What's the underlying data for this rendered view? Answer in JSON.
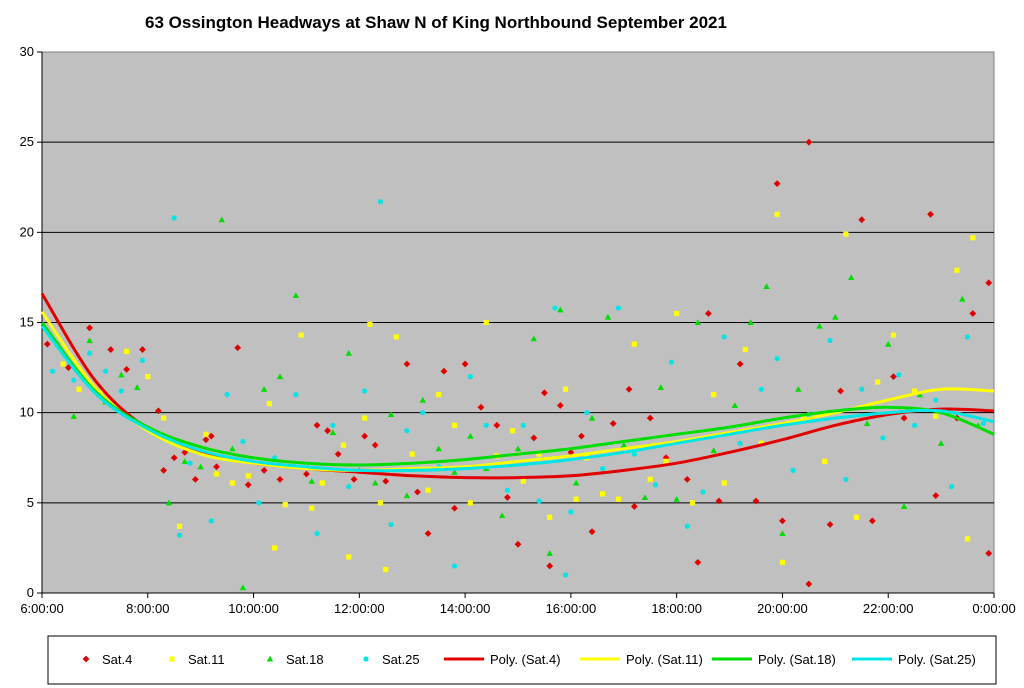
{
  "chart_data": {
    "type": "scatter",
    "title": "63 Ossington Headways at Shaw N of King Northbound September 2021",
    "xlabel": "",
    "ylabel": "",
    "xlim": [
      6,
      24
    ],
    "ylim": [
      0,
      30
    ],
    "x_ticks": [
      6,
      8,
      10,
      12,
      14,
      16,
      18,
      20,
      22,
      24
    ],
    "x_tick_labels": [
      "6:00:00",
      "8:00:00",
      "10:00:00",
      "12:00:00",
      "14:00:00",
      "16:00:00",
      "18:00:00",
      "20:00:00",
      "22:00:00",
      "0:00:00"
    ],
    "y_ticks": [
      0,
      5,
      10,
      15,
      20,
      25,
      30
    ],
    "y_tick_labels": [
      "0",
      "5",
      "10",
      "15",
      "20",
      "25",
      "30"
    ],
    "grid": "horizontal",
    "plot_background": "#c0c0c0",
    "legend_position": "bottom",
    "series": [
      {
        "name": "Sat.4",
        "marker": "diamond",
        "color": "#e00000",
        "points": [
          [
            6.1,
            13.8
          ],
          [
            6.5,
            12.5
          ],
          [
            6.9,
            14.7
          ],
          [
            7.3,
            13.5
          ],
          [
            7.6,
            12.4
          ],
          [
            7.9,
            13.5
          ],
          [
            8.2,
            10.1
          ],
          [
            8.3,
            6.8
          ],
          [
            8.5,
            7.5
          ],
          [
            8.7,
            7.8
          ],
          [
            8.9,
            6.3
          ],
          [
            9.1,
            8.5
          ],
          [
            9.2,
            8.7
          ],
          [
            9.3,
            7.0
          ],
          [
            9.7,
            13.6
          ],
          [
            9.9,
            6.0
          ],
          [
            10.2,
            6.8
          ],
          [
            10.5,
            6.3
          ],
          [
            11.0,
            6.6
          ],
          [
            11.2,
            9.3
          ],
          [
            11.4,
            9.0
          ],
          [
            11.6,
            7.7
          ],
          [
            11.9,
            6.3
          ],
          [
            12.1,
            8.7
          ],
          [
            12.3,
            8.2
          ],
          [
            12.5,
            6.2
          ],
          [
            12.9,
            12.7
          ],
          [
            13.1,
            5.6
          ],
          [
            13.3,
            3.3
          ],
          [
            13.6,
            12.3
          ],
          [
            13.8,
            4.7
          ],
          [
            14.0,
            12.7
          ],
          [
            14.3,
            10.3
          ],
          [
            14.6,
            9.3
          ],
          [
            14.8,
            5.3
          ],
          [
            15.0,
            2.7
          ],
          [
            15.3,
            8.6
          ],
          [
            15.5,
            11.1
          ],
          [
            15.6,
            1.5
          ],
          [
            15.8,
            10.4
          ],
          [
            16.0,
            7.8
          ],
          [
            16.2,
            8.7
          ],
          [
            16.4,
            3.4
          ],
          [
            16.8,
            9.4
          ],
          [
            17.1,
            11.3
          ],
          [
            17.2,
            4.8
          ],
          [
            17.5,
            9.7
          ],
          [
            17.8,
            7.5
          ],
          [
            18.2,
            6.3
          ],
          [
            18.4,
            1.7
          ],
          [
            18.6,
            15.5
          ],
          [
            18.8,
            5.1
          ],
          [
            19.2,
            12.7
          ],
          [
            19.5,
            5.1
          ],
          [
            19.9,
            22.7
          ],
          [
            20.0,
            4.0
          ],
          [
            20.5,
            25.0
          ],
          [
            20.5,
            0.5
          ],
          [
            20.9,
            3.8
          ],
          [
            21.1,
            11.2
          ],
          [
            21.5,
            20.7
          ],
          [
            21.7,
            4.0
          ],
          [
            22.1,
            12.0
          ],
          [
            22.3,
            9.7
          ],
          [
            22.8,
            21.0
          ],
          [
            22.9,
            5.4
          ],
          [
            23.3,
            9.7
          ],
          [
            23.6,
            15.5
          ],
          [
            23.9,
            2.2
          ],
          [
            23.9,
            17.2
          ]
        ]
      },
      {
        "name": "Sat.11",
        "marker": "square",
        "color": "#ffff00",
        "points": [
          [
            6.4,
            12.7
          ],
          [
            6.7,
            11.3
          ],
          [
            7.1,
            11.1
          ],
          [
            7.6,
            13.4
          ],
          [
            8.0,
            12.0
          ],
          [
            8.3,
            9.7
          ],
          [
            8.6,
            3.7
          ],
          [
            8.7,
            8.3
          ],
          [
            9.1,
            8.8
          ],
          [
            9.3,
            6.6
          ],
          [
            9.6,
            6.1
          ],
          [
            9.9,
            6.5
          ],
          [
            10.3,
            10.5
          ],
          [
            10.4,
            2.5
          ],
          [
            10.6,
            4.9
          ],
          [
            10.9,
            14.3
          ],
          [
            11.1,
            4.7
          ],
          [
            11.3,
            6.1
          ],
          [
            11.7,
            8.2
          ],
          [
            11.8,
            2.0
          ],
          [
            12.1,
            9.7
          ],
          [
            12.2,
            14.9
          ],
          [
            12.4,
            5.0
          ],
          [
            12.5,
            1.3
          ],
          [
            12.7,
            14.2
          ],
          [
            13.0,
            7.7
          ],
          [
            13.3,
            5.7
          ],
          [
            13.5,
            11.0
          ],
          [
            13.8,
            9.3
          ],
          [
            14.1,
            5.0
          ],
          [
            14.4,
            15.0
          ],
          [
            14.6,
            7.6
          ],
          [
            14.9,
            9.0
          ],
          [
            15.1,
            6.2
          ],
          [
            15.4,
            7.7
          ],
          [
            15.6,
            4.2
          ],
          [
            15.9,
            11.3
          ],
          [
            16.1,
            5.2
          ],
          [
            16.3,
            7.5
          ],
          [
            16.6,
            5.5
          ],
          [
            16.9,
            5.2
          ],
          [
            17.2,
            13.8
          ],
          [
            17.5,
            6.3
          ],
          [
            17.8,
            7.3
          ],
          [
            18.0,
            15.5
          ],
          [
            18.3,
            5.0
          ],
          [
            18.7,
            11.0
          ],
          [
            18.9,
            6.1
          ],
          [
            19.3,
            13.5
          ],
          [
            19.6,
            8.3
          ],
          [
            19.9,
            21.0
          ],
          [
            20.0,
            1.7
          ],
          [
            20.4,
            9.7
          ],
          [
            20.8,
            7.3
          ],
          [
            21.2,
            19.9
          ],
          [
            21.4,
            4.2
          ],
          [
            21.8,
            11.7
          ],
          [
            22.1,
            14.3
          ],
          [
            22.5,
            11.2
          ],
          [
            22.9,
            9.8
          ],
          [
            23.3,
            17.9
          ],
          [
            23.5,
            3.0
          ],
          [
            23.6,
            19.7
          ]
        ]
      },
      {
        "name": "Sat.18",
        "marker": "triangle",
        "color": "#00dd00",
        "points": [
          [
            6.3,
            13.8
          ],
          [
            6.6,
            9.8
          ],
          [
            6.9,
            14.0
          ],
          [
            7.2,
            10.6
          ],
          [
            7.5,
            12.1
          ],
          [
            7.8,
            11.4
          ],
          [
            8.4,
            5.0
          ],
          [
            8.7,
            7.3
          ],
          [
            9.0,
            7.0
          ],
          [
            9.4,
            20.7
          ],
          [
            9.6,
            8.0
          ],
          [
            9.8,
            0.3
          ],
          [
            10.2,
            11.3
          ],
          [
            10.5,
            12.0
          ],
          [
            10.8,
            16.5
          ],
          [
            11.1,
            6.2
          ],
          [
            11.5,
            8.9
          ],
          [
            11.8,
            13.3
          ],
          [
            12.0,
            6.8
          ],
          [
            12.3,
            6.1
          ],
          [
            12.6,
            9.9
          ],
          [
            12.9,
            5.4
          ],
          [
            13.2,
            10.7
          ],
          [
            13.5,
            8.0
          ],
          [
            13.8,
            6.7
          ],
          [
            14.1,
            8.7
          ],
          [
            14.4,
            6.9
          ],
          [
            14.7,
            4.3
          ],
          [
            15.0,
            8.0
          ],
          [
            15.3,
            14.1
          ],
          [
            15.6,
            2.2
          ],
          [
            15.8,
            15.7
          ],
          [
            16.1,
            6.1
          ],
          [
            16.4,
            9.7
          ],
          [
            16.7,
            15.3
          ],
          [
            17.0,
            8.2
          ],
          [
            17.4,
            5.3
          ],
          [
            17.7,
            11.4
          ],
          [
            18.0,
            5.2
          ],
          [
            18.4,
            15.0
          ],
          [
            18.7,
            7.9
          ],
          [
            19.1,
            10.4
          ],
          [
            19.4,
            15.0
          ],
          [
            19.7,
            17.0
          ],
          [
            20.0,
            3.3
          ],
          [
            20.3,
            11.3
          ],
          [
            20.7,
            14.8
          ],
          [
            21.0,
            15.3
          ],
          [
            21.3,
            17.5
          ],
          [
            21.6,
            9.4
          ],
          [
            22.0,
            13.8
          ],
          [
            22.3,
            4.8
          ],
          [
            22.6,
            11.0
          ],
          [
            23.0,
            8.3
          ],
          [
            23.4,
            16.3
          ],
          [
            23.7,
            9.3
          ]
        ]
      },
      {
        "name": "Sat.25",
        "marker": "circle",
        "color": "#00e5e5",
        "points": [
          [
            6.2,
            12.3
          ],
          [
            6.6,
            11.8
          ],
          [
            6.9,
            13.3
          ],
          [
            7.2,
            12.3
          ],
          [
            7.5,
            11.2
          ],
          [
            7.9,
            12.9
          ],
          [
            8.5,
            20.8
          ],
          [
            8.6,
            3.2
          ],
          [
            8.8,
            7.2
          ],
          [
            9.2,
            4.0
          ],
          [
            9.5,
            11.0
          ],
          [
            9.8,
            8.4
          ],
          [
            10.1,
            5.0
          ],
          [
            10.4,
            7.5
          ],
          [
            10.8,
            11.0
          ],
          [
            11.2,
            3.3
          ],
          [
            11.5,
            9.3
          ],
          [
            11.8,
            5.9
          ],
          [
            12.1,
            11.2
          ],
          [
            12.4,
            21.7
          ],
          [
            12.6,
            3.8
          ],
          [
            12.9,
            9.0
          ],
          [
            13.2,
            10.0
          ],
          [
            13.5,
            7.0
          ],
          [
            13.8,
            1.5
          ],
          [
            14.1,
            12.0
          ],
          [
            14.4,
            9.3
          ],
          [
            14.8,
            5.7
          ],
          [
            15.1,
            9.3
          ],
          [
            15.4,
            5.1
          ],
          [
            15.7,
            15.8
          ],
          [
            15.9,
            1.0
          ],
          [
            16.0,
            4.5
          ],
          [
            16.3,
            10.0
          ],
          [
            16.6,
            6.9
          ],
          [
            16.9,
            15.8
          ],
          [
            17.2,
            7.7
          ],
          [
            17.6,
            6.0
          ],
          [
            17.9,
            12.8
          ],
          [
            18.2,
            3.7
          ],
          [
            18.5,
            5.6
          ],
          [
            18.9,
            14.2
          ],
          [
            19.2,
            8.3
          ],
          [
            19.6,
            11.3
          ],
          [
            19.9,
            13.0
          ],
          [
            20.2,
            6.8
          ],
          [
            20.5,
            9.9
          ],
          [
            20.9,
            14.0
          ],
          [
            21.2,
            6.3
          ],
          [
            21.5,
            11.3
          ],
          [
            21.9,
            8.6
          ],
          [
            22.2,
            12.1
          ],
          [
            22.5,
            9.3
          ],
          [
            22.9,
            10.7
          ],
          [
            23.2,
            5.9
          ],
          [
            23.5,
            14.2
          ],
          [
            23.8,
            9.4
          ]
        ]
      }
    ],
    "trendlines": [
      {
        "name": "Poly. (Sat.4)",
        "color": "#e00000",
        "x": [
          6,
          7,
          8,
          9,
          10,
          11,
          12,
          13,
          14,
          15,
          16,
          17,
          18,
          19,
          20,
          21,
          22,
          23,
          24
        ],
        "y": [
          16.6,
          11.8,
          9.1,
          7.8,
          7.2,
          6.9,
          6.7,
          6.5,
          6.4,
          6.4,
          6.5,
          6.8,
          7.2,
          7.8,
          8.5,
          9.3,
          9.9,
          10.2,
          10.1
        ]
      },
      {
        "name": "Poly. (Sat.11)",
        "color": "#ffff00",
        "x": [
          6,
          7,
          8,
          9,
          10,
          11,
          12,
          13,
          14,
          15,
          16,
          17,
          18,
          19,
          20,
          21,
          22,
          23,
          24
        ],
        "y": [
          15.6,
          11.4,
          9.0,
          7.7,
          7.2,
          6.9,
          6.8,
          6.9,
          7.0,
          7.3,
          7.6,
          8.0,
          8.4,
          8.9,
          9.4,
          10.0,
          10.7,
          11.3,
          11.2
        ]
      },
      {
        "name": "Poly. (Sat.18)",
        "color": "#00dd00",
        "x": [
          6,
          7,
          8,
          9,
          10,
          11,
          12,
          13,
          14,
          15,
          16,
          17,
          18,
          19,
          20,
          21,
          22,
          23,
          24
        ],
        "y": [
          15.0,
          11.2,
          9.2,
          8.1,
          7.5,
          7.2,
          7.1,
          7.2,
          7.4,
          7.7,
          8.0,
          8.4,
          8.8,
          9.2,
          9.7,
          10.1,
          10.3,
          10.0,
          8.8
        ]
      },
      {
        "name": "Poly. (Sat.25)",
        "color": "#00e5e5",
        "x": [
          6,
          7,
          8,
          9,
          10,
          11,
          12,
          13,
          14,
          15,
          16,
          17,
          18,
          19,
          20,
          21,
          22,
          23,
          24
        ],
        "y": [
          14.8,
          11.1,
          9.1,
          7.9,
          7.3,
          7.0,
          6.8,
          6.8,
          6.9,
          7.1,
          7.4,
          7.8,
          8.3,
          8.8,
          9.3,
          9.7,
          10.0,
          10.1,
          9.5
        ]
      }
    ],
    "legend": [
      {
        "label": "Sat.4",
        "kind": "marker",
        "marker": "diamond",
        "color": "#e00000"
      },
      {
        "label": "Sat.11",
        "kind": "marker",
        "marker": "square",
        "color": "#ffff00"
      },
      {
        "label": "Sat.18",
        "kind": "marker",
        "marker": "triangle",
        "color": "#00dd00"
      },
      {
        "label": "Sat.25",
        "kind": "marker",
        "marker": "circle",
        "color": "#00e5e5"
      },
      {
        "label": "Poly. (Sat.4)",
        "kind": "line",
        "color": "#e00000"
      },
      {
        "label": "Poly. (Sat.11)",
        "kind": "line",
        "color": "#ffff00"
      },
      {
        "label": "Poly. (Sat.18)",
        "kind": "line",
        "color": "#00dd00"
      },
      {
        "label": "Poly. (Sat.25)",
        "kind": "line",
        "color": "#00e5e5"
      }
    ]
  }
}
